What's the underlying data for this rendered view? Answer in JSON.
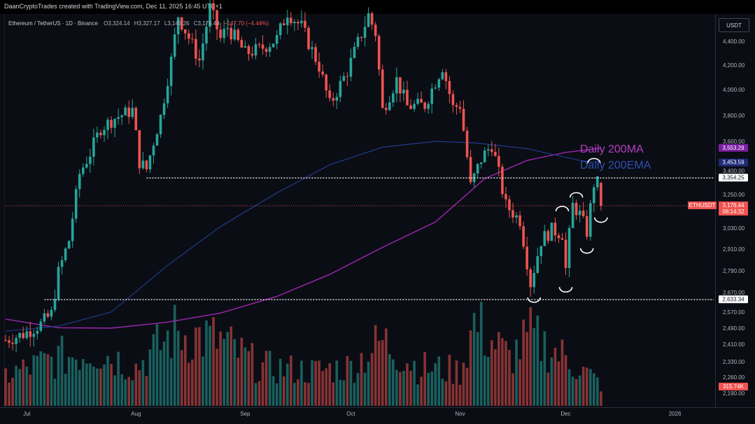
{
  "header": {
    "credit": "DaanCryptoTrades created with TradingView.com, Dec 11, 2025 16:45 UTC+1"
  },
  "legend": {
    "symbol": "Ethereum / TetherUS · 1D · Binance",
    "open": "O3,324.14",
    "high": "H3,327.17",
    "low": "L3,145.26",
    "close": "C3,176.44",
    "change": "−147.70 (−4.44%)"
  },
  "currency_button": "USDT",
  "price_axis": {
    "ticks": [
      "4,400.00",
      "4,200.00",
      "4,000.00",
      "3,800.00",
      "3,600.00",
      "3,400.00",
      "3,250.00",
      "3,030.00",
      "2,910.00",
      "2,790.00",
      "2,670.00",
      "2,570.00",
      "2,490.00",
      "2,410.00",
      "2,330.00",
      "2,260.00",
      "2,190.00"
    ]
  },
  "time_axis": {
    "ticks": [
      "Jul",
      "Aug",
      "Sep",
      "Oct",
      "Nov",
      "Dec",
      "2026"
    ]
  },
  "price_labels": {
    "ma200": "3,553.29",
    "ema200": "3,453.59",
    "level_upper": "3,354.25",
    "symbol_tag": "ETHUSDT",
    "last_price": "3,176.44",
    "countdown": "08:14:32",
    "level_lower": "2,633.34",
    "volume": "315.74K"
  },
  "annotations": {
    "ma_label": "Daily 200MA",
    "ema_label": "Daily 200EMA"
  },
  "colors": {
    "background": "#0b0d14",
    "bull": "#26a69a",
    "bear": "#ef5350",
    "ma200": "#9c27b0",
    "ema200": "#1e3a8a",
    "ma_text": "#b23fc2",
    "ema_text": "#2f4fb0",
    "annotation": "#ffffff"
  },
  "chart_data": {
    "type": "candlestick",
    "symbol": "ETHUSDT",
    "timeframe": "1D",
    "exchange": "Binance",
    "x_range": [
      "2025-06-25",
      "2026-01-12"
    ],
    "y_range": [
      2145,
      4520
    ],
    "last_candle": {
      "date": "2025-12-11",
      "open": 3324.14,
      "high": 3327.17,
      "low": 3145.26,
      "close": 3176.44,
      "change": -147.7,
      "change_pct": -4.44
    },
    "last_volume": "315.74K",
    "close_path": [
      [
        "2025-06-25",
        2430
      ],
      [
        "2025-06-30",
        2460
      ],
      [
        "2025-07-05",
        2510
      ],
      [
        "2025-07-08",
        2560
      ],
      [
        "2025-07-10",
        2780
      ],
      [
        "2025-07-13",
        2960
      ],
      [
        "2025-07-16",
        3380
      ],
      [
        "2025-07-19",
        3520
      ],
      [
        "2025-07-22",
        3700
      ],
      [
        "2025-07-26",
        3780
      ],
      [
        "2025-07-31",
        3840
      ],
      [
        "2025-08-02",
        3460
      ],
      [
        "2025-08-04",
        3410
      ],
      [
        "2025-08-08",
        3790
      ],
      [
        "2025-08-11",
        4240
      ],
      [
        "2025-08-13",
        4620
      ],
      [
        "2025-08-19",
        4240
      ],
      [
        "2025-08-22",
        4680
      ],
      [
        "2025-08-25",
        4420
      ],
      [
        "2025-08-27",
        4520
      ],
      [
        "2025-09-01",
        4300
      ],
      [
        "2025-09-05",
        4330
      ],
      [
        "2025-09-10",
        4420
      ],
      [
        "2025-09-13",
        4650
      ],
      [
        "2025-09-17",
        4520
      ],
      [
        "2025-09-22",
        4190
      ],
      [
        "2025-09-25",
        3880
      ],
      [
        "2025-09-30",
        4150
      ],
      [
        "2025-10-06",
        4620
      ],
      [
        "2025-10-08",
        4470
      ],
      [
        "2025-10-10",
        3840
      ],
      [
        "2025-10-14",
        4080
      ],
      [
        "2025-10-17",
        3870
      ],
      [
        "2025-10-22",
        3880
      ],
      [
        "2025-10-27",
        4190
      ],
      [
        "2025-10-30",
        3860
      ],
      [
        "2025-11-01",
        3880
      ],
      [
        "2025-11-04",
        3300
      ],
      [
        "2025-11-07",
        3480
      ],
      [
        "2025-11-10",
        3580
      ],
      [
        "2025-11-14",
        3180
      ],
      [
        "2025-11-18",
        3080
      ],
      [
        "2025-11-21",
        2720
      ],
      [
        "2025-11-24",
        2960
      ],
      [
        "2025-11-27",
        3020
      ],
      [
        "2025-11-30",
        3000
      ],
      [
        "2025-12-01",
        2800
      ],
      [
        "2025-12-03",
        3180
      ],
      [
        "2025-12-05",
        3120
      ],
      [
        "2025-12-07",
        3010
      ],
      [
        "2025-12-09",
        3320
      ],
      [
        "2025-12-10",
        3320
      ],
      [
        "2025-12-11",
        3176.44
      ]
    ],
    "volume_profile": [
      [
        "2025-06-25",
        0.35
      ],
      [
        "2025-07-10",
        0.55
      ],
      [
        "2025-07-20",
        0.65
      ],
      [
        "2025-08-01",
        0.45
      ],
      [
        "2025-08-12",
        0.85
      ],
      [
        "2025-08-25",
        0.75
      ],
      [
        "2025-09-05",
        0.45
      ],
      [
        "2025-09-20",
        0.4
      ],
      [
        "2025-10-01",
        0.45
      ],
      [
        "2025-10-10",
        0.75
      ],
      [
        "2025-10-20",
        0.45
      ],
      [
        "2025-11-01",
        0.4
      ],
      [
        "2025-11-05",
        0.95
      ],
      [
        "2025-11-15",
        0.55
      ],
      [
        "2025-11-21",
        0.8
      ],
      [
        "2025-12-01",
        0.55
      ],
      [
        "2025-12-11",
        0.25
      ]
    ],
    "series": [
      {
        "name": "Daily 200MA",
        "points": [
          [
            "2025-06-25",
            2535
          ],
          [
            "2025-07-10",
            2492
          ],
          [
            "2025-07-25",
            2490
          ],
          [
            "2025-08-10",
            2520
          ],
          [
            "2025-08-25",
            2565
          ],
          [
            "2025-09-10",
            2650
          ],
          [
            "2025-09-25",
            2770
          ],
          [
            "2025-10-10",
            2920
          ],
          [
            "2025-10-25",
            3070
          ],
          [
            "2025-11-08",
            3350
          ],
          [
            "2025-11-20",
            3470
          ],
          [
            "2025-12-01",
            3525
          ],
          [
            "2025-12-11",
            3553.29
          ]
        ]
      },
      {
        "name": "Daily 200EMA",
        "points": [
          [
            "2025-06-25",
            2475
          ],
          [
            "2025-07-10",
            2500
          ],
          [
            "2025-07-25",
            2570
          ],
          [
            "2025-08-10",
            2820
          ],
          [
            "2025-08-25",
            3040
          ],
          [
            "2025-09-10",
            3260
          ],
          [
            "2025-09-25",
            3440
          ],
          [
            "2025-10-10",
            3560
          ],
          [
            "2025-10-25",
            3600
          ],
          [
            "2025-11-05",
            3590
          ],
          [
            "2025-11-20",
            3550
          ],
          [
            "2025-12-05",
            3470
          ],
          [
            "2025-12-11",
            3453.59
          ]
        ]
      }
    ],
    "horizontal_levels": [
      {
        "value": 3354.25,
        "from": "2025-08-04",
        "to": "2026-01-12",
        "style": "dotted"
      },
      {
        "value": 2633.34,
        "from": "2025-07-06",
        "to": "2026-01-12",
        "style": "dotted"
      }
    ],
    "last_price_line": 3176.44,
    "pattern_marks": [
      {
        "type": "trough",
        "date": "2025-11-22",
        "price": 2645
      },
      {
        "type": "peak",
        "date": "2025-11-30",
        "price": 3140
      },
      {
        "type": "trough",
        "date": "2025-12-01",
        "price": 2700
      },
      {
        "type": "peak",
        "date": "2025-12-04",
        "price": 3230
      },
      {
        "type": "trough",
        "date": "2025-12-07",
        "price": 2915
      },
      {
        "type": "peak",
        "date": "2025-12-09",
        "price": 3450
      },
      {
        "type": "trough",
        "date": "2025-12-11",
        "price": 3100
      }
    ]
  }
}
